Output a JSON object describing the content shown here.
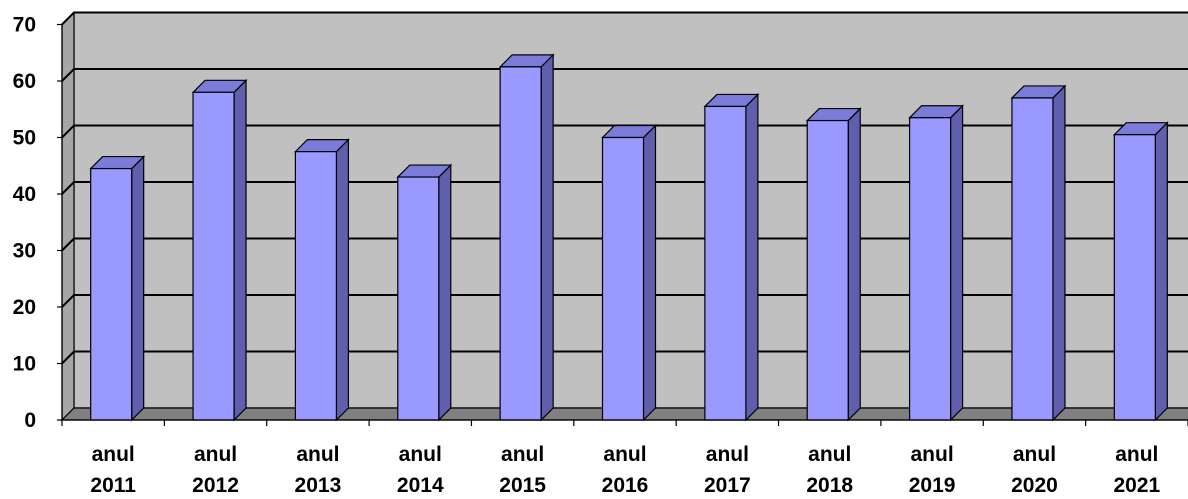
{
  "chart_data": {
    "type": "bar",
    "categories": [
      [
        "anul",
        "2011"
      ],
      [
        "anul",
        "2012"
      ],
      [
        "anul",
        "2013"
      ],
      [
        "anul",
        "2014"
      ],
      [
        "anul",
        "2015"
      ],
      [
        "anul",
        "2016"
      ],
      [
        "anul",
        "2017"
      ],
      [
        "anul",
        "2018"
      ],
      [
        "anul",
        "2019"
      ],
      [
        "anul",
        "2020"
      ],
      [
        "anul",
        "2021"
      ]
    ],
    "values": [
      44.5,
      58,
      47.5,
      43,
      62.5,
      50,
      55.5,
      53,
      53.5,
      57,
      50.5
    ],
    "title": "",
    "xlabel": "",
    "ylabel": "",
    "ylim": [
      0,
      70
    ],
    "yticks": [
      0,
      10,
      20,
      30,
      40,
      50,
      60,
      70
    ],
    "grid": true,
    "legend": "none",
    "style": "3d-column",
    "colors": {
      "bar_front": "#9999ff",
      "bar_top": "#7b7bd9",
      "bar_side": "#5f5fae",
      "plot_back": "#c0c0c0",
      "plot_wall": "#a6a6a6",
      "plot_floor": "#808080",
      "gridline": "#000000"
    }
  }
}
